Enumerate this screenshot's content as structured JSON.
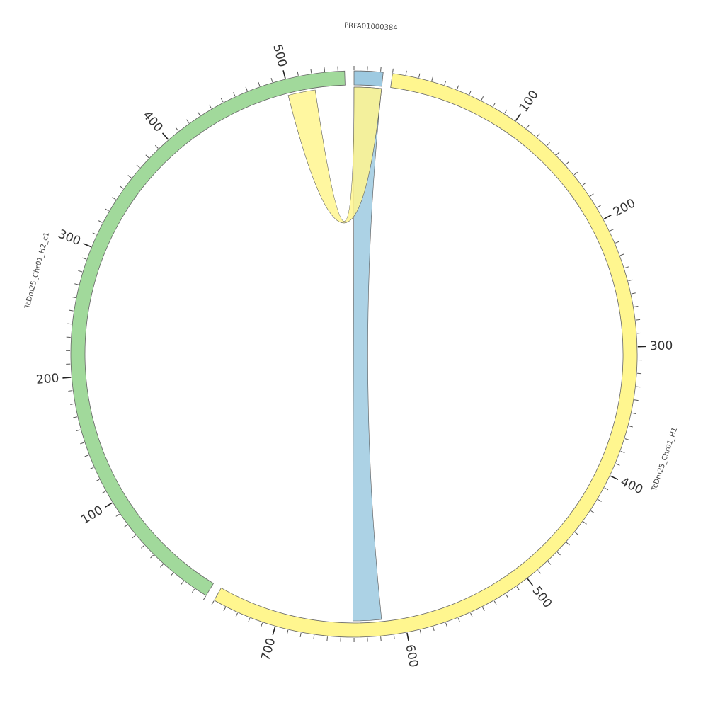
{
  "chart_data": {
    "type": "chord",
    "segments": [
      {
        "name": "PRFA01000384",
        "color": "#9ecae1",
        "length": 22,
        "ticks": []
      },
      {
        "name": "TcDm25_Chr01_H1",
        "color": "#fff68f",
        "length": 750,
        "ticks": [
          100,
          200,
          300,
          400,
          500,
          600,
          700
        ]
      },
      {
        "name": "TcDm25_Chr01_H2_c1",
        "color": "#a1d99b",
        "length": 545,
        "ticks": [
          100,
          200,
          300,
          400,
          500
        ]
      }
    ],
    "minor_tick_step": 10,
    "links": [
      {
        "source": 0,
        "source_range": [
          0,
          22
        ],
        "target": 1,
        "target_range": [
          618,
          641
        ],
        "color": "#9ecae1"
      },
      {
        "source": 2,
        "source_range": [
          499,
          521
        ],
        "target": 0,
        "target_range": [
          0,
          22
        ],
        "color": "#fff68f"
      }
    ]
  }
}
